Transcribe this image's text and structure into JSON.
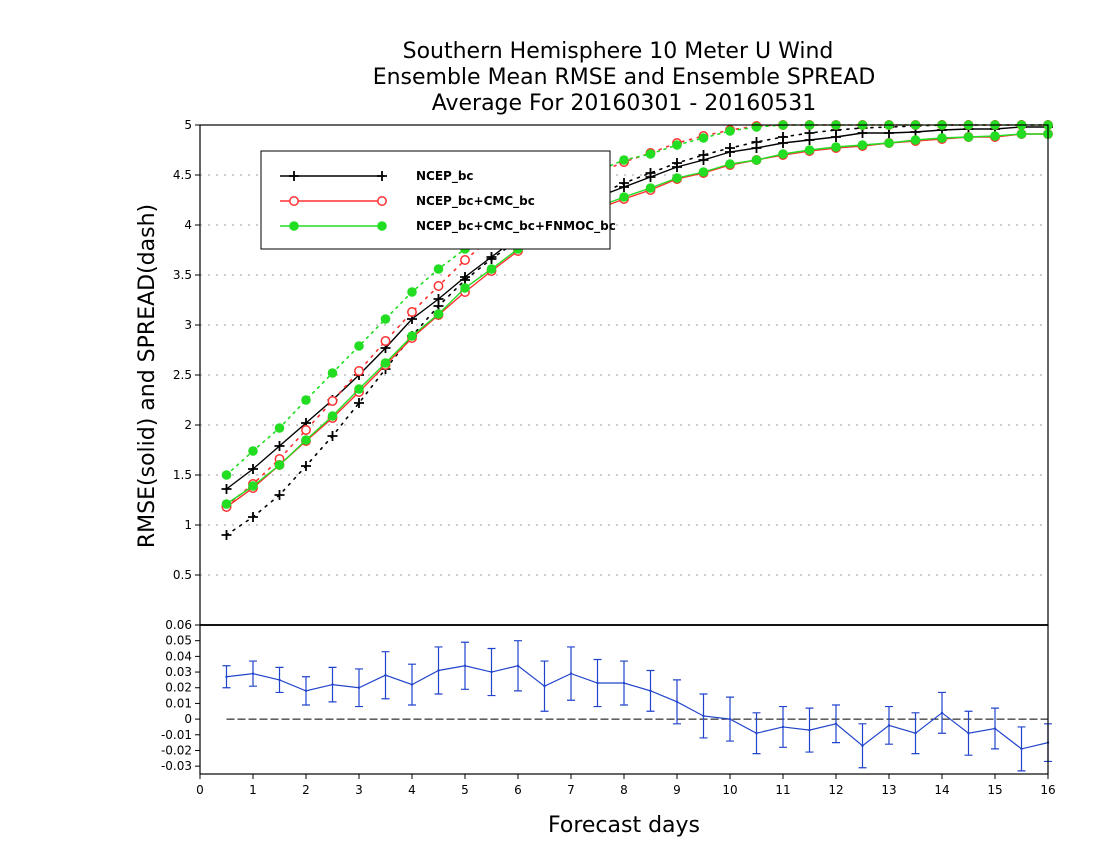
{
  "chart_data": [
    {
      "type": "line",
      "title_lines": [
        "Southern Hemisphere 10 Meter U Wind",
        "Ensemble Mean RMSE and Ensemble SPREAD",
        "Average For 20160301 - 20160531"
      ],
      "ylabel": "RMSE(solid) and SPREAD(dash)",
      "xlim": [
        0,
        16
      ],
      "ylim": [
        0,
        5
      ],
      "yticks": [
        "0.5",
        "1",
        "1.5",
        "2",
        "2.5",
        "3",
        "3.5",
        "4",
        "4.5",
        "5"
      ],
      "grid": true,
      "legend_position": "top-left",
      "x": [
        0.5,
        1,
        1.5,
        2,
        2.5,
        3,
        3.5,
        4,
        4.5,
        5,
        5.5,
        6,
        6.5,
        7,
        7.5,
        8,
        8.5,
        9,
        9.5,
        10,
        10.5,
        11,
        11.5,
        12,
        12.5,
        13,
        13.5,
        14,
        14.5,
        15,
        15.5,
        16
      ],
      "series": [
        {
          "name": "NCEP_bc",
          "color": "#000000",
          "marker": "plus",
          "rmse": [
            1.36,
            1.56,
            1.79,
            2.02,
            2.25,
            2.5,
            2.77,
            3.06,
            3.26,
            3.48,
            3.68,
            3.88,
            4.04,
            4.16,
            4.28,
            4.38,
            4.48,
            4.58,
            4.65,
            4.73,
            4.77,
            4.82,
            4.85,
            4.88,
            4.92,
            4.92,
            4.93,
            4.95,
            4.96,
            4.96,
            4.98,
            4.98
          ],
          "spread": [
            0.9,
            1.08,
            1.3,
            1.59,
            1.89,
            2.22,
            2.56,
            2.89,
            3.19,
            3.45,
            3.66,
            3.85,
            4.02,
            4.17,
            4.3,
            4.42,
            4.52,
            4.62,
            4.7,
            4.77,
            4.83,
            4.88,
            4.92,
            4.95,
            4.97,
            4.98,
            4.99,
            5.0,
            5.0,
            5.0,
            5.0,
            5.0
          ]
        },
        {
          "name": "NCEP_bc+CMC_bc",
          "color": "#ff3030",
          "marker": "open-circle",
          "rmse": [
            1.18,
            1.37,
            1.6,
            1.84,
            2.07,
            2.33,
            2.6,
            2.87,
            3.1,
            3.33,
            3.54,
            3.74,
            3.9,
            4.04,
            4.16,
            4.26,
            4.35,
            4.46,
            4.52,
            4.6,
            4.65,
            4.7,
            4.74,
            4.77,
            4.79,
            4.82,
            4.84,
            4.86,
            4.88,
            4.88,
            4.91,
            4.91
          ],
          "spread": [
            1.19,
            1.41,
            1.66,
            1.95,
            2.24,
            2.54,
            2.84,
            3.13,
            3.39,
            3.65,
            3.87,
            4.06,
            4.23,
            4.38,
            4.52,
            4.63,
            4.72,
            4.82,
            4.89,
            4.95,
            4.99,
            5.0,
            5.0,
            5.0,
            5.0,
            5.0,
            5.0,
            5.0,
            5.0,
            5.0,
            5.0,
            5.0
          ]
        },
        {
          "name": "NCEP_bc+CMC_bc+FNMOC_bc",
          "color": "#22dd22",
          "marker": "filled-circle",
          "rmse": [
            1.21,
            1.39,
            1.6,
            1.85,
            2.09,
            2.36,
            2.62,
            2.89,
            3.11,
            3.37,
            3.56,
            3.76,
            3.92,
            4.05,
            4.18,
            4.28,
            4.37,
            4.47,
            4.53,
            4.61,
            4.65,
            4.71,
            4.75,
            4.78,
            4.8,
            4.82,
            4.85,
            4.87,
            4.88,
            4.89,
            4.91,
            4.91
          ],
          "spread": [
            1.5,
            1.74,
            1.97,
            2.25,
            2.52,
            2.79,
            3.06,
            3.33,
            3.56,
            3.76,
            3.94,
            4.1,
            4.25,
            4.4,
            4.54,
            4.65,
            4.71,
            4.8,
            4.87,
            4.94,
            4.98,
            5.0,
            5.0,
            5.0,
            5.0,
            5.0,
            5.0,
            5.0,
            5.0,
            5.0,
            5.0,
            5.0
          ]
        }
      ]
    },
    {
      "type": "line",
      "xlabel": "Forecast days",
      "xlim": [
        0,
        16
      ],
      "ylim": [
        -0.035,
        0.06
      ],
      "xticks": [
        "0",
        "1",
        "2",
        "3",
        "4",
        "5",
        "6",
        "7",
        "8",
        "9",
        "10",
        "11",
        "12",
        "13",
        "14",
        "15",
        "16"
      ],
      "yticks": [
        "-0.03",
        "-0.02",
        "-0.01",
        "0",
        "0.01",
        "0.02",
        "0.03",
        "0.04",
        "0.05",
        "0.06"
      ],
      "reference_line": 0,
      "error_bars": true,
      "x": [
        0.5,
        1,
        1.5,
        2,
        2.5,
        3,
        3.5,
        4,
        4.5,
        5,
        5.5,
        6,
        6.5,
        7,
        7.5,
        8,
        8.5,
        9,
        9.5,
        10,
        10.5,
        11,
        11.5,
        12,
        12.5,
        13,
        13.5,
        14,
        14.5,
        15,
        15.5,
        16
      ],
      "series": [
        {
          "color": "#2244cc",
          "values": [
            0.027,
            0.029,
            0.025,
            0.018,
            0.022,
            0.02,
            0.028,
            0.022,
            0.031,
            0.034,
            0.03,
            0.034,
            0.021,
            0.029,
            0.023,
            0.023,
            0.018,
            0.011,
            0.002,
            0.0,
            -0.009,
            -0.005,
            -0.007,
            -0.003,
            -0.017,
            -0.004,
            -0.009,
            0.004,
            -0.009,
            -0.006,
            -0.019,
            -0.015
          ],
          "err": [
            0.007,
            0.008,
            0.008,
            0.009,
            0.011,
            0.012,
            0.015,
            0.013,
            0.015,
            0.015,
            0.015,
            0.016,
            0.016,
            0.017,
            0.015,
            0.014,
            0.013,
            0.014,
            0.014,
            0.014,
            0.013,
            0.013,
            0.014,
            0.012,
            0.014,
            0.012,
            0.013,
            0.013,
            0.014,
            0.013,
            0.014,
            0.012
          ]
        }
      ]
    }
  ]
}
